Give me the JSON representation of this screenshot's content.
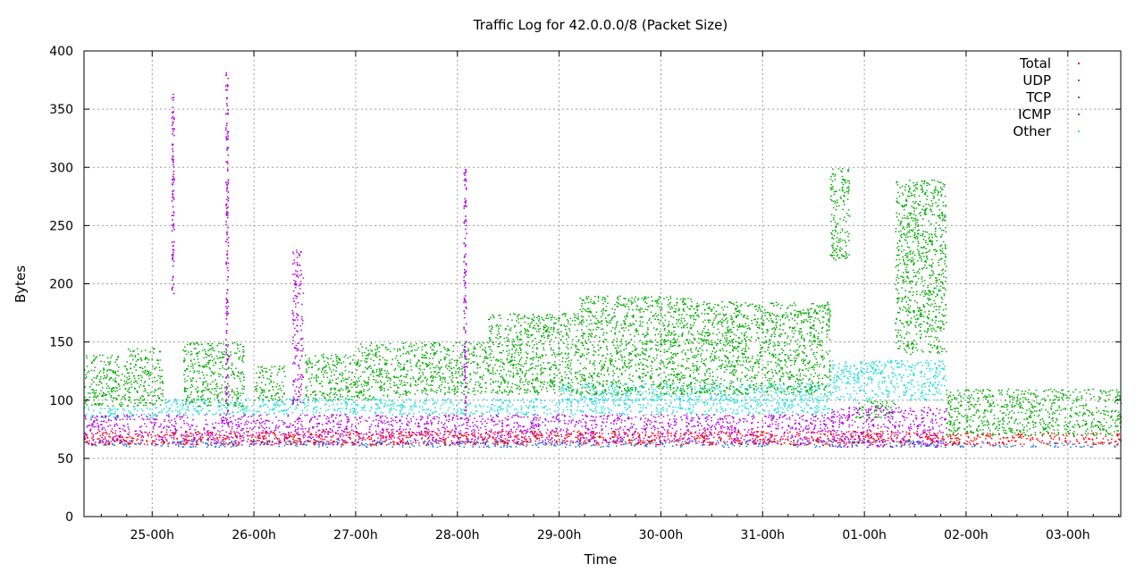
{
  "chart_data": {
    "type": "scatter",
    "title": "Traffic Log for 42.0.0.0/8 (Packet Size)",
    "xlabel": "Time",
    "ylabel": "Bytes",
    "ylim": [
      0,
      400
    ],
    "yticks": [
      0,
      50,
      100,
      150,
      200,
      250,
      300,
      350,
      400
    ],
    "xlim_days": [
      24.33,
      34.52
    ],
    "xticks": [
      {
        "day": 25,
        "label": "25-00h"
      },
      {
        "day": 26,
        "label": "26-00h"
      },
      {
        "day": 27,
        "label": "27-00h"
      },
      {
        "day": 28,
        "label": "28-00h"
      },
      {
        "day": 29,
        "label": "29-00h"
      },
      {
        "day": 30,
        "label": "30-00h"
      },
      {
        "day": 31,
        "label": "31-00h"
      },
      {
        "day": 32,
        "label": "01-00h"
      },
      {
        "day": 33,
        "label": "02-00h"
      },
      {
        "day": 34,
        "label": "03-00h"
      }
    ],
    "grid": true,
    "legend_position": "top-right",
    "series": [
      {
        "name": "Total",
        "color": "#ff0000",
        "bands": [
          {
            "x": [
              24.33,
              32.8
            ],
            "y": [
              62,
              74
            ]
          },
          {
            "x": [
              32.8,
              34.52
            ],
            "y": [
              62,
              72
            ]
          }
        ]
      },
      {
        "name": "UDP",
        "color": "#00aa00",
        "bands": [
          {
            "x": [
              24.33,
              24.75
            ],
            "y": [
              95,
              140
            ]
          },
          {
            "x": [
              24.75,
              25.1
            ],
            "y": [
              95,
              145
            ]
          },
          {
            "x": [
              25.3,
              25.9
            ],
            "y": [
              95,
              150
            ]
          },
          {
            "x": [
              26.0,
              26.3
            ],
            "y": [
              100,
              130
            ]
          },
          {
            "x": [
              26.5,
              27.0
            ],
            "y": [
              100,
              140
            ]
          },
          {
            "x": [
              27.0,
              27.5
            ],
            "y": [
              100,
              150
            ]
          },
          {
            "x": [
              27.5,
              28.3
            ],
            "y": [
              105,
              150
            ]
          },
          {
            "x": [
              28.3,
              29.2
            ],
            "y": [
              105,
              175
            ]
          },
          {
            "x": [
              29.2,
              30.3
            ],
            "y": [
              105,
              190
            ]
          },
          {
            "x": [
              30.3,
              31.3
            ],
            "y": [
              105,
              185
            ]
          },
          {
            "x": [
              31.3,
              31.66
            ],
            "y": [
              105,
              185
            ]
          },
          {
            "x": [
              31.66,
              31.85
            ],
            "y": [
              220,
              300
            ]
          },
          {
            "x": [
              31.9,
              32.3
            ],
            "y": [
              85,
              100
            ]
          },
          {
            "x": [
              32.3,
              32.8
            ],
            "y": [
              140,
              290
            ]
          },
          {
            "x": [
              32.8,
              34.52
            ],
            "y": [
              70,
              110
            ]
          }
        ]
      },
      {
        "name": "TCP",
        "color": "#1f6fd6",
        "bands": [
          {
            "x": [
              24.33,
              32.8
            ],
            "y": [
              60,
              66
            ]
          },
          {
            "x": [
              32.8,
              34.52
            ],
            "y": [
              60,
              64
            ]
          }
        ]
      },
      {
        "name": "ICMP",
        "color": "#b000e0",
        "bands": [
          {
            "x": [
              24.33,
              31.66
            ],
            "y": [
              62,
              88
            ]
          },
          {
            "x": [
              31.66,
              32.8
            ],
            "y": [
              60,
              95
            ]
          },
          {
            "x": [
              26.37,
              26.48
            ],
            "y": [
              95,
              230
            ]
          }
        ],
        "spikes": [
          {
            "x": 25.2,
            "y": [
              190,
              370
            ]
          },
          {
            "x": 25.73,
            "y": [
              80,
              385
            ]
          },
          {
            "x": 28.07,
            "y": [
              80,
              300
            ]
          }
        ]
      },
      {
        "name": "Other",
        "color": "#22dddd",
        "bands": [
          {
            "x": [
              24.33,
              25.1
            ],
            "y": [
              85,
              95
            ]
          },
          {
            "x": [
              25.1,
              31.66
            ],
            "y": [
              88,
              102
            ]
          },
          {
            "x": [
              29.0,
              31.66
            ],
            "y": [
              100,
              115
            ]
          },
          {
            "x": [
              31.66,
              32.8
            ],
            "y": [
              100,
              135
            ]
          }
        ]
      }
    ]
  }
}
